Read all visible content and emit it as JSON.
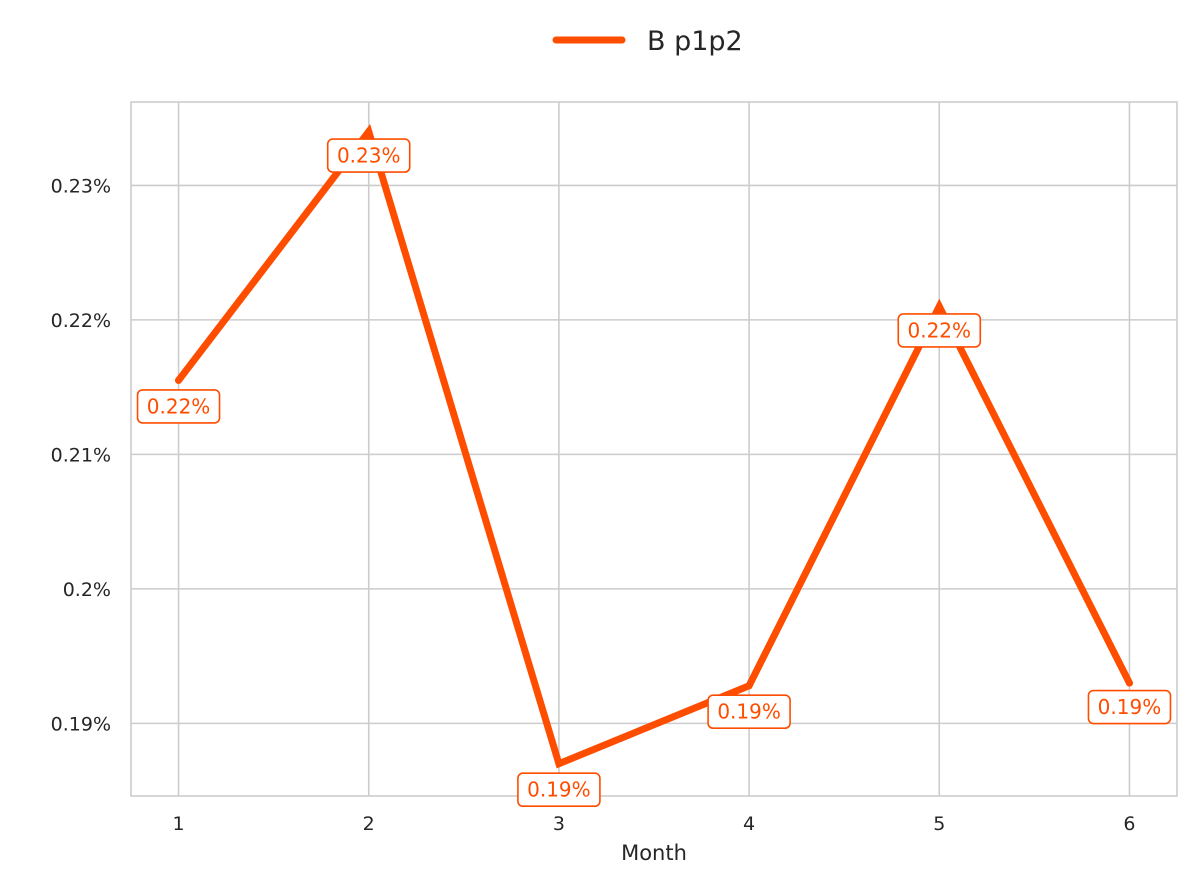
{
  "chart_data": {
    "type": "line",
    "x": [
      1,
      2,
      3,
      4,
      5,
      6
    ],
    "series": [
      {
        "name": "B p1p2",
        "color": "#FF4D00",
        "values": [
          0.2155,
          0.234,
          0.187,
          0.1928,
          0.221,
          0.193
        ],
        "labels": [
          "0.22%",
          "0.23%",
          "0.19%",
          "0.19%",
          "0.22%",
          "0.19%"
        ]
      }
    ],
    "xlabel": "Month",
    "ylabel": "",
    "xlim": [
      0.75,
      6.25
    ],
    "ylim": [
      0.1846,
      0.2362
    ],
    "xticks": [
      1,
      2,
      3,
      4,
      5,
      6
    ],
    "xtick_labels": [
      "1",
      "2",
      "3",
      "4",
      "5",
      "6"
    ],
    "yticks": [
      0.19,
      0.2,
      0.21,
      0.22,
      0.23
    ],
    "ytick_labels": [
      "0.19%",
      "0.2%",
      "0.21%",
      "0.22%",
      "0.23%"
    ],
    "grid": true,
    "legend": "top-center"
  }
}
